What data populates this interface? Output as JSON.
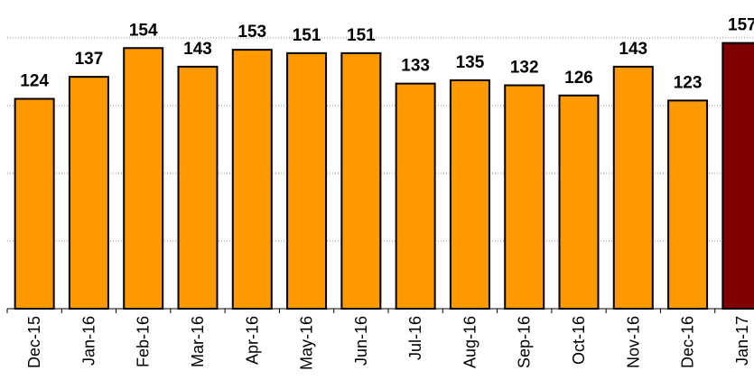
{
  "chart_data": {
    "type": "bar",
    "categories": [
      "Dec-15",
      "Jan-16",
      "Feb-16",
      "Mar-16",
      "Apr-16",
      "May-16",
      "Jun-16",
      "Jul-16",
      "Aug-16",
      "Sep-16",
      "Oct-16",
      "Nov-16",
      "Dec-16",
      "Jan-17"
    ],
    "values": [
      124,
      137,
      154,
      143,
      153,
      151,
      151,
      133,
      135,
      132,
      126,
      143,
      123,
      157
    ],
    "value_labels": [
      "124",
      "137",
      "154",
      "143",
      "153",
      "151",
      "151",
      "133",
      "135",
      "132",
      "126",
      "143",
      "123",
      "157"
    ],
    "title": "",
    "xlabel": "",
    "ylabel": "",
    "ylim": [
      0,
      160
    ],
    "y_gridlines": [
      40,
      80,
      120,
      160
    ],
    "grid": true,
    "legend": "none",
    "colors": {
      "bar": "#ff9900",
      "highlight": "#7f0000",
      "outline": "#000000",
      "gridline": "#8a8a8a"
    },
    "highlight_index": 13
  }
}
